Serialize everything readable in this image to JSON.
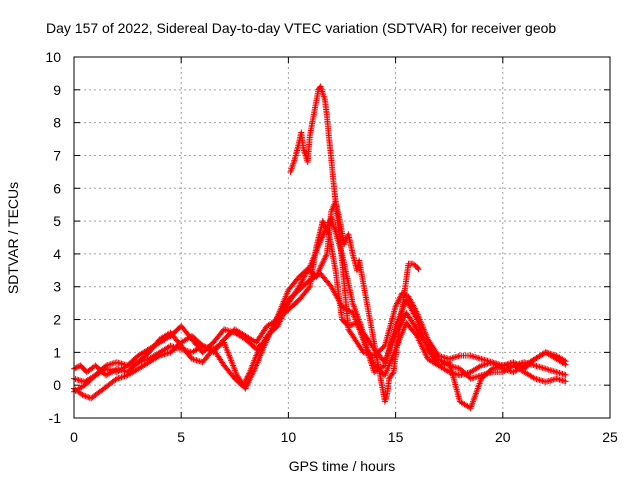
{
  "chart_data": {
    "type": "scatter",
    "title": "Day 157 of 2022, Sidereal Day-to-day VTEC variation (SDTVAR) for receiver geob",
    "xlabel": "GPS time / hours",
    "ylabel": "SDTVAR / TECUs",
    "xlim": [
      0,
      25
    ],
    "ylim": [
      -1,
      10
    ],
    "xticks": [
      "0",
      "5",
      "10",
      "15",
      "20",
      "25"
    ],
    "yticks": [
      "-1",
      "0",
      "1",
      "2",
      "3",
      "4",
      "5",
      "6",
      "7",
      "8",
      "9",
      "10"
    ],
    "grid": true,
    "marker": "+",
    "series": [
      {
        "name": "SDTVAR",
        "color": "#ff0000",
        "tracks": [
          {
            "x": [
              0,
              0.5,
              1,
              1.5,
              2,
              2.5,
              3,
              3.5,
              4,
              4.5,
              5,
              5.5,
              6,
              6.5,
              7,
              7.3,
              7.6,
              7.9,
              8.2,
              8.5,
              9,
              9.5,
              10,
              10.5,
              10.8,
              11,
              11.3,
              11.5,
              11.8,
              12,
              12.2,
              12.5,
              12.8,
              13,
              13.5,
              14,
              14.5,
              15,
              15.3,
              15.6,
              16,
              16.5,
              17,
              17.5,
              18,
              18.5,
              19,
              19.5,
              20,
              20.5,
              21,
              21.5,
              22,
              22.5,
              23
            ],
            "y": [
              0.2,
              0.1,
              0.3,
              0.5,
              0.4,
              0.6,
              0.7,
              0.8,
              1.0,
              1.2,
              1.1,
              1.0,
              1.2,
              1.1,
              1.3,
              0.8,
              0.3,
              0.0,
              0.4,
              0.9,
              1.5,
              1.8,
              2.5,
              3.0,
              3.4,
              3.5,
              3.3,
              3.6,
              4.0,
              5.3,
              5.6,
              3.8,
              1.7,
              1.5,
              1.0,
              0.9,
              1.2,
              2.4,
              2.8,
              2.7,
              2.2,
              1.4,
              0.9,
              0.8,
              0.9,
              0.9,
              0.8,
              0.7,
              0.6,
              0.6,
              0.7,
              0.6,
              0.5,
              0.4,
              0.3
            ]
          },
          {
            "x": [
              0,
              0.4,
              0.8,
              1.2,
              1.6,
              2,
              2.5,
              3,
              3.5,
              4,
              4.5,
              5,
              5.5,
              6,
              6.5,
              7,
              7.5,
              8,
              8.5,
              9,
              9.5,
              10,
              10.5,
              11,
              11.3,
              11.6,
              11.9,
              12.2,
              12.5,
              12.8,
              13.2,
              13.6,
              14,
              14.5,
              15,
              15.5,
              16,
              16.5,
              17,
              17.5,
              18,
              18.5,
              19,
              19.5,
              20,
              20.5,
              21,
              21.5,
              22,
              22.5,
              23
            ],
            "y": [
              -0.1,
              -0.3,
              -0.4,
              -0.2,
              0.0,
              0.2,
              0.3,
              0.5,
              0.7,
              0.9,
              1.0,
              1.3,
              1.5,
              1.2,
              1.0,
              1.4,
              1.7,
              1.5,
              1.3,
              1.8,
              2.0,
              2.3,
              2.6,
              3.0,
              4.2,
              5.0,
              4.6,
              3.5,
              2.0,
              1.8,
              1.9,
              1.2,
              0.4,
              0.6,
              1.8,
              2.6,
              2.0,
              1.1,
              0.6,
              0.4,
              0.3,
              0.4,
              0.6,
              0.7,
              0.5,
              0.4,
              0.6,
              0.8,
              1.0,
              0.9,
              0.7
            ]
          },
          {
            "x": [
              0,
              0.3,
              0.6,
              1,
              1.5,
              2,
              2.5,
              3,
              3.5,
              4,
              4.5,
              5,
              5.5,
              6,
              6.5,
              7,
              7.5,
              8,
              8.5,
              9,
              9.5,
              10,
              10.5,
              11,
              11.5,
              12,
              12.5,
              13,
              13.5,
              14,
              14.5,
              15,
              15.5,
              16,
              16.5,
              17,
              17.5,
              18,
              18.5,
              19,
              19.5,
              20,
              20.5,
              21,
              21.5,
              22,
              22.5,
              23
            ],
            "y": [
              0.5,
              0.6,
              0.4,
              0.6,
              0.3,
              0.5,
              0.4,
              0.7,
              1.0,
              1.4,
              1.6,
              1.2,
              0.8,
              0.7,
              1.1,
              0.6,
              0.2,
              -0.1,
              0.6,
              1.4,
              2.1,
              2.6,
              2.9,
              3.2,
              3.4,
              3.0,
              2.4,
              2.2,
              1.4,
              0.6,
              0.3,
              1.1,
              1.9,
              1.5,
              0.8,
              0.6,
              0.7,
              -0.5,
              -0.7,
              0.2,
              0.5,
              0.6,
              0.7,
              0.5,
              0.8,
              1.0,
              0.8,
              0.6
            ]
          },
          {
            "x": [
              0,
              0.5,
              1,
              1.5,
              2,
              2.5,
              3,
              3.5,
              4,
              4.5,
              5,
              5.5,
              6,
              6.5,
              7,
              7.5,
              8,
              8.5,
              9,
              9.5,
              10,
              10.5,
              11,
              11.5,
              12,
              12.5,
              13,
              13.5,
              14,
              14.5,
              15,
              15.5,
              16,
              16.5,
              17,
              17.5,
              18,
              18.5,
              19,
              19.5,
              20,
              20.5,
              21,
              21.5,
              22,
              22.5,
              23
            ],
            "y": [
              -0.2,
              0.0,
              0.3,
              0.6,
              0.7,
              0.6,
              0.9,
              1.1,
              1.3,
              1.5,
              1.8,
              1.4,
              1.0,
              1.3,
              1.7,
              1.6,
              1.4,
              1.1,
              1.4,
              2.1,
              2.9,
              3.3,
              3.6,
              4.4,
              5.1,
              4.0,
              2.5,
              1.6,
              1.1,
              0.7,
              1.6,
              2.2,
              1.7,
              1.2,
              0.8,
              0.6,
              0.5,
              0.2,
              0.3,
              0.4,
              0.4,
              0.6,
              0.4,
              0.2,
              0.1,
              0.2,
              0.1
            ]
          },
          {
            "x": [
              10.1,
              10.3,
              10.5,
              10.6,
              10.7,
              10.9,
              11.0,
              11.2,
              11.4,
              11.5,
              11.7,
              11.8,
              11.9,
              12.0,
              12.1,
              12.2,
              12.4,
              12.6,
              12.8,
              13.0,
              13.2,
              13.3,
              14.5,
              14.6,
              14.7,
              14.9,
              15.6,
              15.8,
              16.0,
              16.1
            ],
            "y": [
              6.5,
              6.9,
              7.4,
              7.7,
              7.2,
              6.8,
              7.6,
              8.3,
              9.0,
              9.1,
              8.7,
              8.2,
              7.5,
              6.9,
              6.2,
              5.6,
              5.0,
              4.3,
              4.6,
              4.0,
              3.5,
              3.8,
              -0.5,
              -0.3,
              0.2,
              0.4,
              3.7,
              3.7,
              3.6,
              3.5
            ]
          }
        ]
      }
    ]
  }
}
